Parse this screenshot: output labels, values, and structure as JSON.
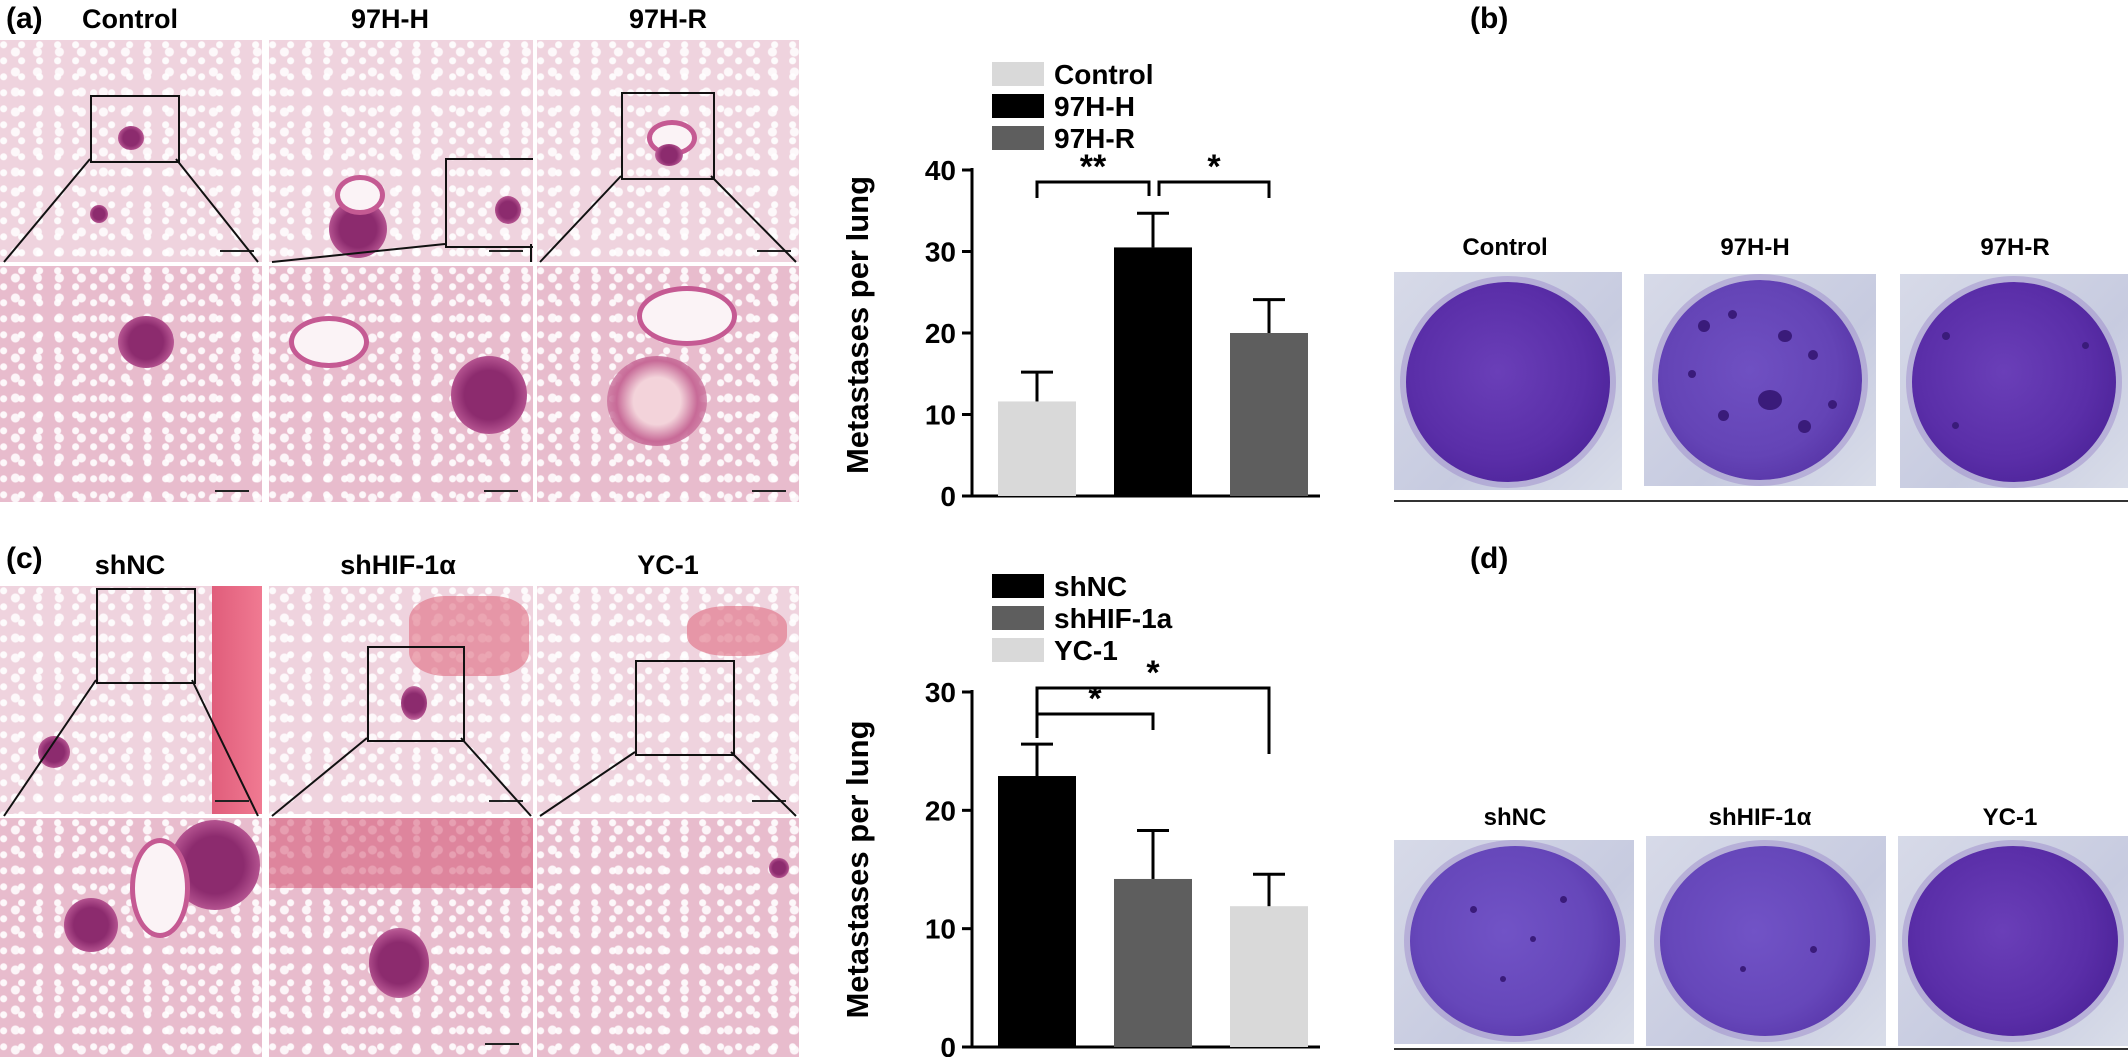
{
  "panels": {
    "a": {
      "letter": "(a)",
      "labels": [
        "Control",
        "97H-H",
        "97H-R"
      ]
    },
    "b": {
      "letter": "(b)",
      "labels": [
        "Control",
        "97H-H",
        "97H-R"
      ]
    },
    "c": {
      "letter": "(c)",
      "labels": [
        "shNC",
        "shHIF-1α",
        "YC-1"
      ]
    },
    "d": {
      "letter": "(d)",
      "labels": [
        "shNC",
        "shHIF-1α",
        "YC-1"
      ]
    }
  },
  "icons": [
    "micrograph-image",
    "zoom-box",
    "colony-dish-image"
  ],
  "chart_data": [
    {
      "type": "bar",
      "categories": [
        "Control",
        "97H-H",
        "97H-R"
      ],
      "values": [
        11.6,
        30.5,
        20.0
      ],
      "errors": [
        3.6,
        4.2,
        4.1
      ],
      "colors": [
        "#d9d9d9",
        "#000000",
        "#5e5e5e"
      ],
      "legend": [
        "Control",
        "97H-H",
        "97H-R"
      ],
      "legend_position": "top",
      "ylabel": "Metastases per lung",
      "ylim": [
        0,
        40
      ],
      "yticks": [
        0,
        10,
        20,
        30,
        40
      ],
      "significance": [
        {
          "from": 0,
          "to": 1,
          "label": "**"
        },
        {
          "from": 1,
          "to": 2,
          "label": "*"
        }
      ]
    },
    {
      "type": "bar",
      "categories": [
        "shNC",
        "shHIF-1a",
        "YC-1"
      ],
      "values": [
        22.9,
        14.2,
        11.9
      ],
      "errors": [
        2.7,
        4.1,
        2.7
      ],
      "colors": [
        "#000000",
        "#5e5e5e",
        "#d9d9d9"
      ],
      "legend": [
        "shNC",
        "shHIF-1a",
        "YC-1"
      ],
      "legend_position": "top",
      "ylabel": "Metastases per lung",
      "ylim": [
        0,
        30
      ],
      "yticks": [
        10,
        20,
        30
      ],
      "ytick_labels": [
        "10",
        "20",
        "30"
      ],
      "bottom_tick_label": "0",
      "significance": [
        {
          "from": 0,
          "to": 1,
          "label": "*"
        },
        {
          "from": 0,
          "to": 2,
          "label": "*"
        }
      ]
    }
  ]
}
